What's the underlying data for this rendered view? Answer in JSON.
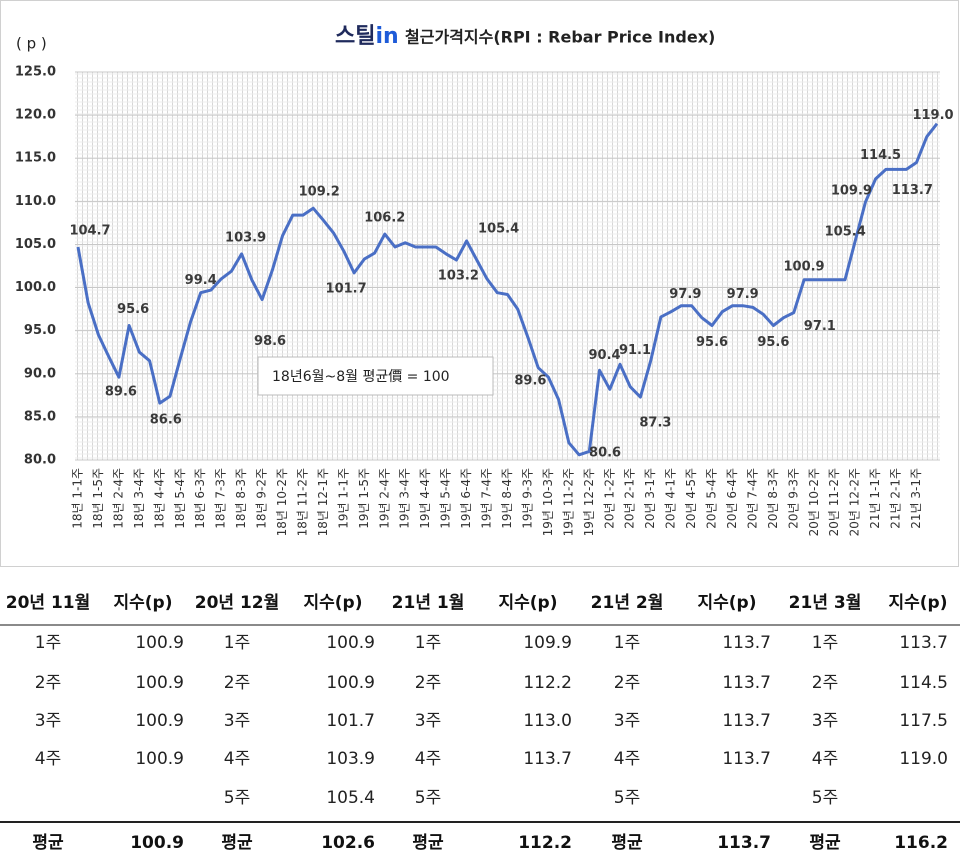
{
  "chart_data": {
    "type": "line",
    "logo": [
      "스틸",
      "in"
    ],
    "title": "철근가격지수(RPI : Rebar Price Index)",
    "y_label": "( p )",
    "note": "18년6월~8월 평균價 = 100",
    "color": "#4a6fc5",
    "grid": true,
    "ylim": [
      80,
      125
    ],
    "yticks": [
      {
        "value": 80,
        "label": "80.0"
      },
      {
        "value": 85,
        "label": "85.0"
      },
      {
        "value": 90,
        "label": "90.0"
      },
      {
        "value": 95,
        "label": "95.0"
      },
      {
        "value": 100,
        "label": "100.0"
      },
      {
        "value": 105,
        "label": "105.0"
      },
      {
        "value": 110,
        "label": "110.0"
      },
      {
        "value": 115,
        "label": "115.0"
      },
      {
        "value": 120,
        "label": "120.0"
      },
      {
        "value": 125,
        "label": "125.0"
      }
    ],
    "categories": [
      "18년 1-1주",
      null,
      "18년 1-5주",
      null,
      "18년 2-4주",
      null,
      "18년 3-4주",
      null,
      "18년 4-4주",
      null,
      "18년 5-4주",
      null,
      "18년 6-3주",
      null,
      "18년 7-3주",
      null,
      "18년 8-3주",
      null,
      "18년 9-2주",
      null,
      "18년 10-2주",
      null,
      "18년 11-2주",
      null,
      "18년 12-1주",
      null,
      "19년 1-1주",
      null,
      "19년 1-5주",
      null,
      "19년 2-4주",
      null,
      "19년 3-4주",
      null,
      "19년 4-4주",
      null,
      "19년 5-4주",
      null,
      "19년 6-4주",
      null,
      "19년 7-4주",
      null,
      "19년 8-4주",
      null,
      "19년 9-3주",
      null,
      "19년 10-3주",
      null,
      "19년 11-2주",
      null,
      "19년 12-2주",
      null,
      "20년 1-2주",
      null,
      "20년 2-1주",
      null,
      "20년 3-1주",
      null,
      "20년 4-1주",
      null,
      "20년 4-5주",
      null,
      "20년 5-4주",
      null,
      "20년 6-4주",
      null,
      "20년 7-4주",
      null,
      "20년 8-3주",
      null,
      "20년 9-3주",
      null,
      "20년 10-2주",
      null,
      "20년 11-2주",
      null,
      "20년 12-2주",
      null,
      "21년 1-1주",
      null,
      "21년 2-1주",
      null,
      "21년 3-1주",
      null,
      null
    ],
    "values": [
      104.7,
      98.2,
      94.5,
      92,
      89.6,
      95.6,
      92.5,
      91.5,
      86.6,
      87.4,
      91.8,
      96,
      99.4,
      99.7,
      101,
      101.9,
      103.9,
      100.9,
      98.6,
      102,
      106,
      108.4,
      108.4,
      109.2,
      107.8,
      106.3,
      104.2,
      101.7,
      103.3,
      104,
      106.2,
      104.7,
      105.2,
      104.7,
      104.7,
      104.7,
      103.9,
      103.2,
      105.4,
      103.2,
      101,
      99.4,
      99.2,
      97.5,
      94.2,
      90.7,
      89.6,
      87,
      82,
      80.6,
      81,
      90.4,
      88.2,
      91.1,
      88.5,
      87.3,
      91.5,
      96.6,
      97.2,
      97.9,
      97.9,
      96.5,
      95.6,
      97.2,
      97.9,
      97.9,
      97.7,
      96.9,
      95.6,
      96.5,
      97.1,
      100.9,
      100.9,
      100.9,
      100.9,
      100.9,
      105.4,
      109.9,
      112.6,
      113.7,
      113.7,
      113.7,
      114.5,
      117.5,
      119
    ],
    "value_labels": [
      "104.7",
      null,
      null,
      null,
      "89.6",
      "95.6",
      null,
      null,
      "86.6",
      null,
      null,
      null,
      "99.4",
      null,
      null,
      null,
      "103.9",
      null,
      "98.6",
      null,
      null,
      null,
      null,
      "109.2",
      null,
      null,
      null,
      "101.7",
      null,
      null,
      "106.2",
      null,
      null,
      null,
      null,
      null,
      null,
      "103.2",
      "105.4",
      null,
      null,
      null,
      null,
      null,
      null,
      null,
      "89.6",
      null,
      null,
      "80.6",
      null,
      "90.4",
      null,
      "91.1",
      null,
      "87.3",
      null,
      null,
      null,
      "97.9",
      null,
      null,
      "95.6",
      null,
      null,
      "97.9",
      null,
      null,
      "95.6",
      null,
      "97.1",
      "100.9",
      null,
      null,
      null,
      null,
      "105.4",
      "109.9",
      null,
      null,
      null,
      "113.7",
      "114.5",
      null,
      "119.0"
    ]
  },
  "table": {
    "headers": [
      "20년 11월",
      "지수(p)",
      "20년 12월",
      "지수(p)",
      "21년 1월",
      "지수(p)",
      "21년 2월",
      "지수(p)",
      "21년 3월",
      "지수(p)"
    ],
    "rows": [
      [
        "1주",
        "100.9",
        "1주",
        "100.9",
        "1주",
        "109.9",
        "1주",
        "113.7",
        "1주",
        "113.7"
      ],
      [
        "2주",
        "100.9",
        "2주",
        "100.9",
        "2주",
        "112.2",
        "2주",
        "113.7",
        "2주",
        "114.5"
      ],
      [
        "3주",
        "100.9",
        "3주",
        "101.7",
        "3주",
        "113.0",
        "3주",
        "113.7",
        "3주",
        "117.5"
      ],
      [
        "4주",
        "100.9",
        "4주",
        "103.9",
        "4주",
        "113.7",
        "4주",
        "113.7",
        "4주",
        "119.0"
      ],
      [
        null,
        null,
        "5주",
        "105.4",
        "5주",
        null,
        "5주",
        null,
        "5주",
        null
      ]
    ],
    "footer": [
      "평균",
      "100.9",
      "평균",
      "102.6",
      "평균",
      "112.2",
      "평균",
      "113.7",
      "평균",
      "116.2"
    ]
  }
}
